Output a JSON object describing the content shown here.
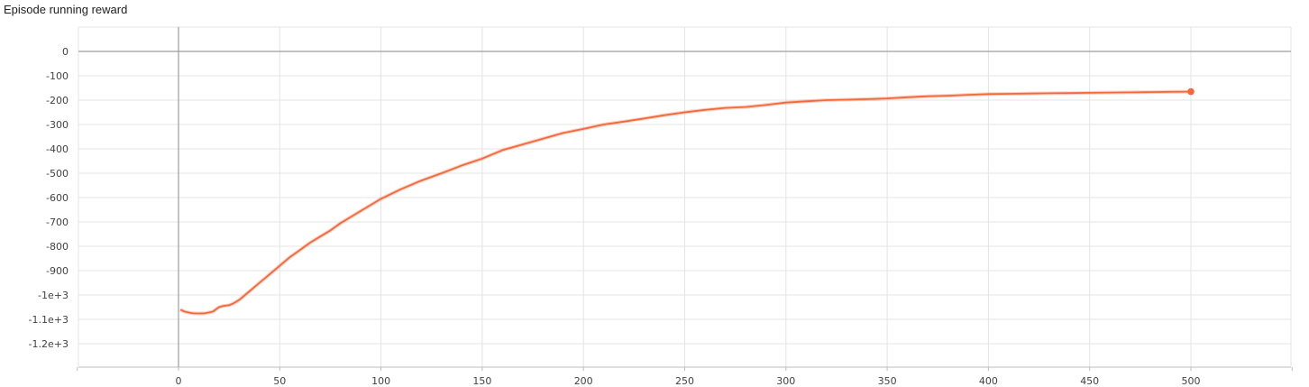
{
  "chart_data": {
    "type": "line",
    "title": "Episode running reward",
    "xlabel": "",
    "ylabel": "",
    "xlim": [
      -50,
      550
    ],
    "ylim": [
      -1300,
      100
    ],
    "x_ticks": [
      0,
      50,
      100,
      150,
      200,
      250,
      300,
      350,
      400,
      450,
      500
    ],
    "x_tick_labels": [
      "0",
      "50",
      "100",
      "150",
      "200",
      "250",
      "300",
      "350",
      "400",
      "450",
      "500"
    ],
    "y_ticks": [
      0,
      -100,
      -200,
      -300,
      -400,
      -500,
      -600,
      -700,
      -800,
      -900,
      -1000,
      -1100,
      -1200
    ],
    "y_tick_labels": [
      "0",
      "-100",
      "-200",
      "-300",
      "-400",
      "-500",
      "-600",
      "-700",
      "-800",
      "-900",
      "-1e+3",
      "-1.1e+3",
      "-1.2e+3"
    ],
    "grid": true,
    "series": [
      {
        "color": "#f4683a",
        "x": [
          1,
          3,
          5,
          7,
          10,
          13,
          15,
          17,
          20,
          22,
          25,
          27,
          30,
          35,
          40,
          45,
          50,
          55,
          60,
          65,
          70,
          75,
          80,
          85,
          90,
          95,
          100,
          110,
          120,
          130,
          140,
          150,
          160,
          170,
          180,
          190,
          200,
          210,
          220,
          230,
          240,
          250,
          260,
          270,
          280,
          290,
          300,
          310,
          320,
          330,
          340,
          350,
          360,
          370,
          380,
          390,
          400,
          410,
          420,
          430,
          440,
          450,
          460,
          470,
          480,
          490,
          500
        ],
        "y": [
          -1060,
          -1068,
          -1072,
          -1075,
          -1076,
          -1075,
          -1072,
          -1068,
          -1050,
          -1045,
          -1042,
          -1035,
          -1020,
          -985,
          -950,
          -915,
          -880,
          -845,
          -815,
          -785,
          -760,
          -735,
          -705,
          -680,
          -655,
          -630,
          -605,
          -565,
          -530,
          -500,
          -468,
          -440,
          -405,
          -382,
          -358,
          -335,
          -318,
          -300,
          -288,
          -275,
          -262,
          -250,
          -240,
          -232,
          -228,
          -220,
          -210,
          -205,
          -200,
          -198,
          -196,
          -193,
          -188,
          -184,
          -182,
          -178,
          -175,
          -174,
          -173,
          -172,
          -171,
          -170,
          -169,
          -168,
          -167,
          -166,
          -165
        ]
      }
    ]
  }
}
